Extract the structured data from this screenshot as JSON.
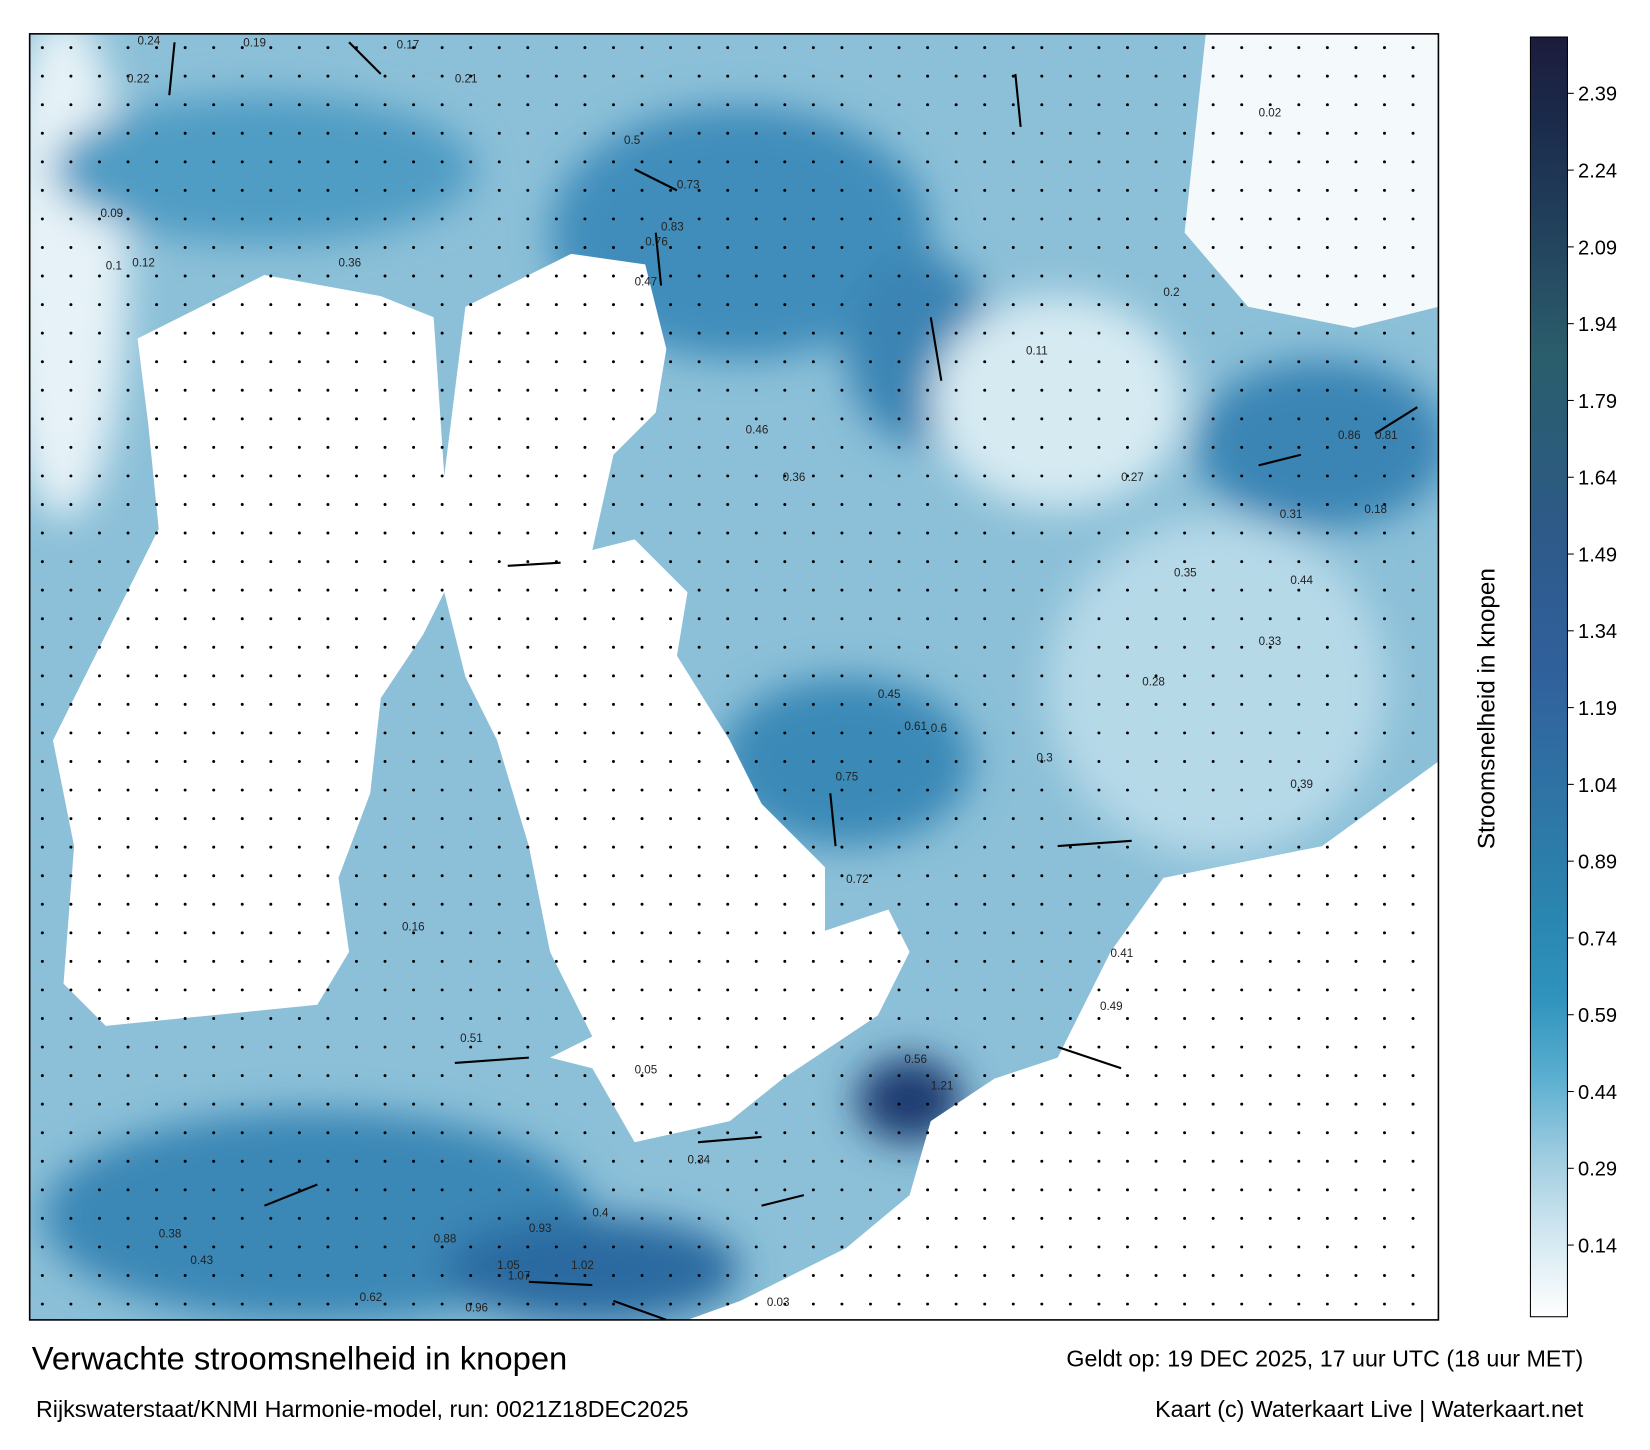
{
  "header": {
    "title": "Verwachte stroomsnelheid in knopen",
    "valid": "Geldt op: 19 DEC 2025, 17 uur UTC (18 uur MET)",
    "model": "Rijkswaterstaat/KNMI Harmonie-model, run: 0021Z18DEC2025",
    "credit": "Kaart (c) Waterkaart Live | Waterkaart.net"
  },
  "colorbar": {
    "label": "Stroomsnelheid in knopen",
    "range": [
      0,
      2.5
    ],
    "ticks": [
      0.14,
      0.29,
      0.44,
      0.59,
      0.74,
      0.89,
      1.04,
      1.19,
      1.34,
      1.49,
      1.64,
      1.79,
      1.94,
      2.09,
      2.24,
      2.39
    ],
    "colors": [
      "#ffffff",
      "#d3e8f1",
      "#9fcce0",
      "#5aaed0",
      "#2f93bd",
      "#2a86b0",
      "#2d7aa8",
      "#2f6ea2",
      "#30619c",
      "#2f5c93",
      "#2d5a86",
      "#2b5c78",
      "#2a5e6c",
      "#264c63",
      "#1f3a57",
      "#1b2a4a",
      "#1c1c3c"
    ]
  },
  "map_labels": [
    0.24,
    0.19,
    0.22,
    0.17,
    0.21,
    0.36,
    0.5,
    0.73,
    0.83,
    0.76,
    0.47,
    0.46,
    0.36,
    0.27,
    0.31,
    0.18,
    0.2,
    0.09,
    0.1,
    0.12,
    0.35,
    0.44,
    0.86,
    0.81,
    0.33,
    0.28,
    0.3,
    0.6,
    0.75,
    0.72,
    0.61,
    0.41,
    0.49,
    0.45,
    0.34,
    0.4,
    0.51,
    0.39,
    0.56,
    0.93,
    1.05,
    1.07,
    1.02,
    0.96,
    0.88,
    0.62,
    0.38,
    0.43,
    1.21,
    0.16,
    0.05,
    0.03,
    0.02,
    0.11
  ]
}
